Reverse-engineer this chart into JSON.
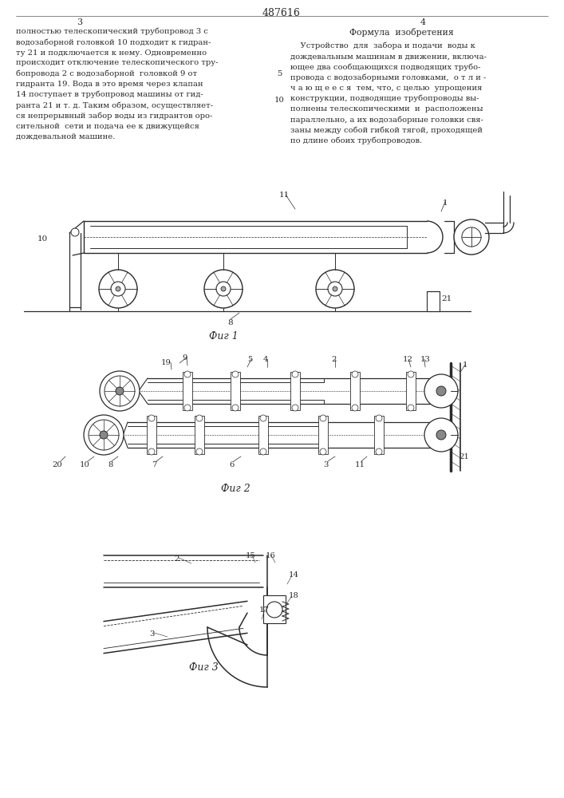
{
  "title": "487616",
  "page_left": "3",
  "page_right": "4",
  "fig1_caption": "Фиг 1",
  "fig2_caption": "Фиг 2",
  "fig3_caption": "Фиг 3",
  "bg_color": "#ffffff",
  "line_color": "#2a2a2a",
  "text_left": "полностью телескопический трубопровод 3 с\nводозаборной головкой 10 подходит к гидран-\nту 21 и подключается к нему. Одновременно\nпроисходит отключение телескопического тру-\nбопровода 2 с водозаборной  головкой 9 от\nгидранта 19. Вода в это время через клапан\n14 поступает в трубопровод машины от гид-\nранта 21 и т. д. Таким образом, осуществляет-\nся непрерывный забор воды из гидрантов оро-\nсительной  сети и подача ее к движущейся\nдождевальной машине.",
  "formula_title": "Формула  изобретения",
  "text_right": "    Устройство  для  забора и подачи  воды к\nдождевальным машинам в движении, включа-\nющее два сообщающихся подводящих трубо-\nпровода с водозаборными головками,  о т л и -\nч а ю щ е е с я  тем, что, с целью  упрощения\nконструкции, подводящие трубопроводы вы-\nполнены телескопическими  и  расположены\nпараллельно, а их водозаборные головки свя-\nзаны между собой гибкой тягой, проходящей\nпо длине обоих трубопроводов.",
  "fig1_labels": {
    "1": "1",
    "8": "8",
    "10": "10",
    "11": "11",
    "21": "21"
  },
  "fig2_labels_top": {
    "1": "1",
    "2": "2",
    "4": "4",
    "5": "5",
    "9": "9",
    "12": "12",
    "13": "13",
    "19": "19"
  },
  "fig2_labels_bot": {
    "3": "3",
    "6": "6",
    "7": "7",
    "8": "8",
    "10": "10",
    "11": "11",
    "20": "20",
    "21": "21"
  },
  "fig3_labels": {
    "2": "2",
    "3": "3",
    "14": "14",
    "15": "15",
    "16": "16",
    "17": "17",
    "18": "18"
  }
}
